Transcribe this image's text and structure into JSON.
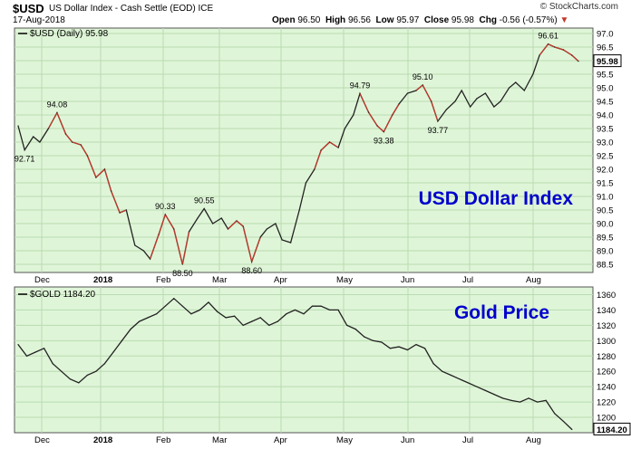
{
  "header": {
    "symbol": "$USD",
    "description": "US Dollar Index - Cash Settle (EOD)",
    "exchange": "ICE",
    "date": "17-Aug-2018",
    "brand": "© StockCharts.com",
    "open_label": "Open",
    "open": "96.50",
    "high_label": "High",
    "high": "96.56",
    "low_label": "Low",
    "low": "95.97",
    "close_label": "Close",
    "close": "95.98",
    "chg_label": "Chg",
    "chg": "-0.56 (-0.57%)",
    "chg_icon": "down-triangle-icon"
  },
  "colors": {
    "panel_bg": "#dff5d8",
    "grid": "#b8dcb0",
    "line_dark": "#222222",
    "line_red": "#c0392b",
    "title": "#0000cc"
  },
  "chart_data": [
    {
      "type": "line",
      "legend": "$USD (Daily) 95.98",
      "title": "USD Dollar Index",
      "last_value_tag": "95.98",
      "ylim": [
        88.2,
        97.2
      ],
      "yticks": [
        88.5,
        89.0,
        89.5,
        90.0,
        90.5,
        91.0,
        91.5,
        92.0,
        92.5,
        93.0,
        93.5,
        94.0,
        94.5,
        95.0,
        95.5,
        96.0,
        96.5,
        97.0
      ],
      "xticks": [
        "Dec",
        "2018",
        "Feb",
        "Mar",
        "Apr",
        "May",
        "Jun",
        "Jul",
        "Aug"
      ],
      "x": [
        0,
        3,
        7,
        10,
        14,
        18,
        22,
        25,
        29,
        32,
        36,
        40,
        43,
        47,
        50,
        54,
        58,
        61,
        65,
        68,
        72,
        76,
        79,
        83,
        86,
        90,
        94,
        97,
        101,
        104,
        108,
        112,
        115,
        119,
        122,
        126,
        130,
        133,
        137,
        140,
        144,
        148,
        151,
        155,
        158,
        162,
        166,
        169,
        173,
        176,
        180,
        184,
        187,
        191,
        194,
        198,
        202,
        205,
        209,
        212,
        216,
        220,
        223,
        227,
        230,
        234,
        238,
        241,
        245,
        248,
        252,
        256,
        259
      ],
      "values": [
        93.6,
        92.71,
        93.2,
        93.0,
        93.5,
        94.08,
        93.3,
        93.0,
        92.9,
        92.5,
        91.7,
        92.0,
        91.2,
        90.4,
        90.5,
        89.2,
        89.0,
        88.7,
        89.6,
        90.33,
        89.8,
        88.5,
        89.7,
        90.2,
        90.55,
        90.0,
        90.2,
        89.8,
        90.1,
        89.9,
        88.6,
        89.5,
        89.8,
        90.0,
        89.4,
        89.3,
        90.5,
        91.5,
        92.0,
        92.7,
        93.0,
        92.8,
        93.5,
        94.0,
        94.79,
        94.1,
        93.6,
        93.38,
        94.0,
        94.4,
        94.8,
        94.9,
        95.1,
        94.5,
        93.77,
        94.2,
        94.5,
        94.9,
        94.3,
        94.6,
        94.8,
        94.3,
        94.5,
        95.0,
        95.2,
        94.9,
        95.5,
        96.2,
        96.61,
        96.5,
        96.4,
        96.2,
        95.98
      ],
      "red_segments": [
        [
          4,
          14
        ],
        [
          17,
          22
        ],
        [
          27,
          31
        ],
        [
          38,
          41
        ],
        [
          44,
          49
        ],
        [
          51,
          54
        ],
        [
          67,
          72
        ]
      ],
      "annotations": [
        {
          "label": "92.71",
          "i": 1
        },
        {
          "label": "94.08",
          "i": 5
        },
        {
          "label": "90.33",
          "i": 19
        },
        {
          "label": "88.50",
          "i": 21
        },
        {
          "label": "90.55",
          "i": 24
        },
        {
          "label": "88.60",
          "i": 30
        },
        {
          "label": "94.79",
          "i": 44
        },
        {
          "label": "93.38",
          "i": 47
        },
        {
          "label": "95.10",
          "i": 52
        },
        {
          "label": "93.77",
          "i": 54
        },
        {
          "label": "96.61",
          "i": 68
        }
      ]
    },
    {
      "type": "line",
      "legend": "$GOLD 1184.20",
      "title": "Gold Price",
      "last_value_tag": "1184.20",
      "ylim": [
        1180,
        1370
      ],
      "yticks": [
        1200,
        1220,
        1240,
        1260,
        1280,
        1300,
        1320,
        1340,
        1360
      ],
      "xticks": [
        "Dec",
        "2018",
        "Feb",
        "Mar",
        "Apr",
        "May",
        "Jun",
        "Jul",
        "Aug"
      ],
      "x": [
        0,
        4,
        8,
        12,
        16,
        20,
        24,
        28,
        32,
        36,
        40,
        44,
        48,
        52,
        56,
        60,
        64,
        68,
        72,
        76,
        80,
        84,
        88,
        92,
        96,
        100,
        104,
        108,
        112,
        116,
        120,
        124,
        128,
        132,
        136,
        140,
        144,
        148,
        152,
        156,
        160,
        164,
        168,
        172,
        176,
        180,
        184,
        188,
        192,
        196,
        200,
        204,
        208,
        212,
        216,
        220,
        224,
        228,
        232,
        236,
        240,
        244,
        248,
        252,
        256
      ],
      "values": [
        1295,
        1280,
        1285,
        1290,
        1270,
        1260,
        1250,
        1245,
        1255,
        1260,
        1270,
        1285,
        1300,
        1315,
        1325,
        1330,
        1335,
        1345,
        1355,
        1345,
        1335,
        1340,
        1350,
        1338,
        1330,
        1332,
        1320,
        1325,
        1330,
        1320,
        1325,
        1335,
        1340,
        1335,
        1345,
        1345,
        1340,
        1340,
        1320,
        1315,
        1305,
        1300,
        1298,
        1290,
        1292,
        1288,
        1295,
        1290,
        1270,
        1260,
        1255,
        1250,
        1245,
        1240,
        1235,
        1230,
        1225,
        1222,
        1220,
        1225,
        1220,
        1222,
        1205,
        1195,
        1184.2
      ]
    }
  ]
}
